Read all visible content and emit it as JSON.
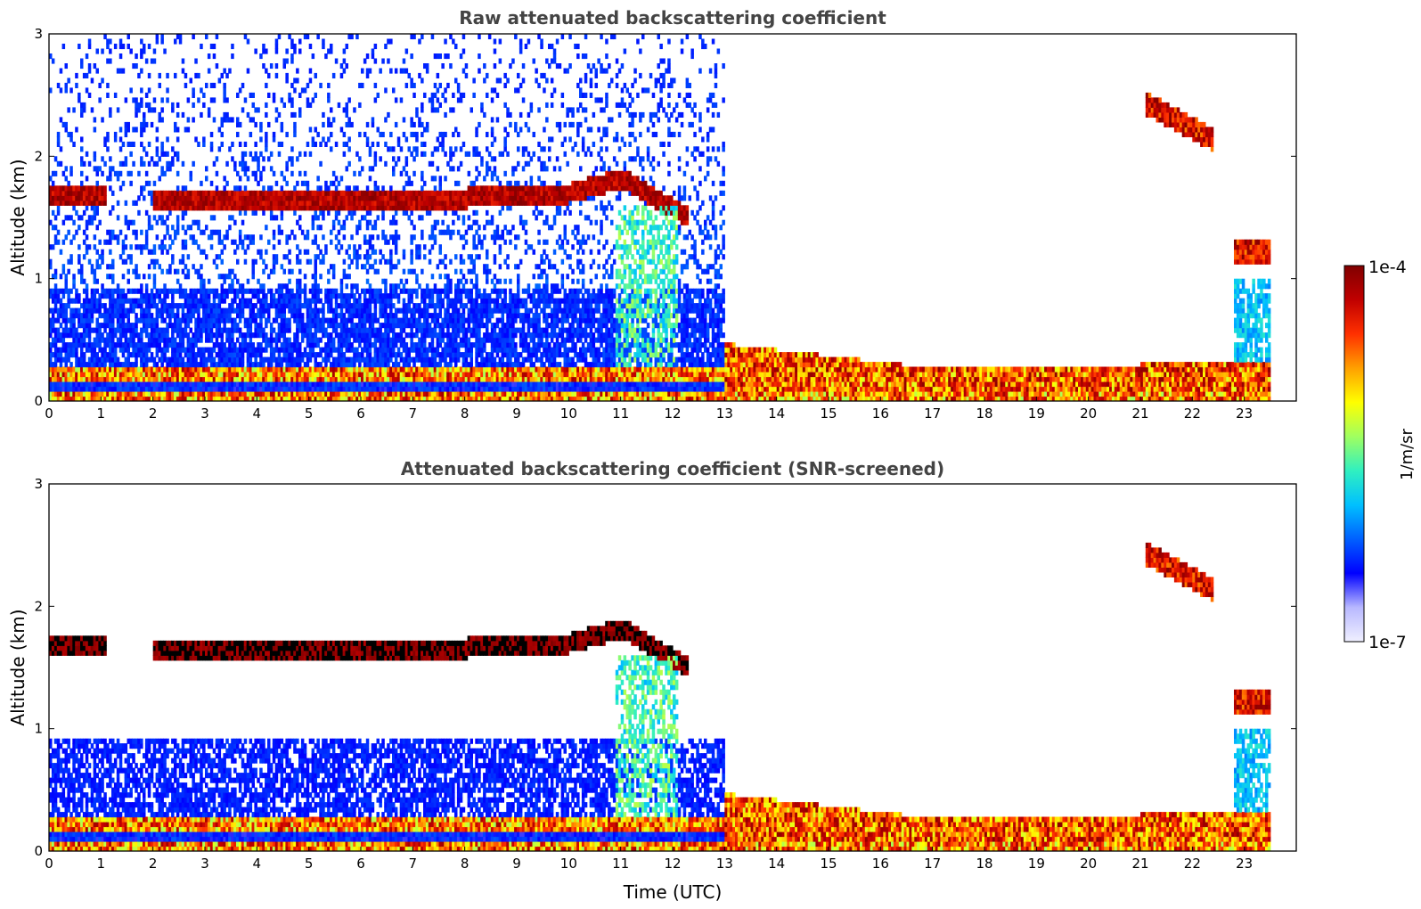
{
  "chart_data": [
    {
      "type": "heatmap",
      "title": "Raw attenuated backscattering coefficient",
      "xlabel": "",
      "ylabel": "Altitude (km)",
      "xlim": [
        0,
        24
      ],
      "ylim": [
        0,
        3
      ],
      "xticks": [
        "0",
        "1",
        "2",
        "3",
        "4",
        "5",
        "6",
        "7",
        "8",
        "9",
        "10",
        "11",
        "12",
        "13",
        "14",
        "15",
        "16",
        "17",
        "18",
        "19",
        "20",
        "21",
        "22",
        "23"
      ],
      "yticks": [
        "0",
        "1",
        "2",
        "3"
      ],
      "data_end_hour": 23.5,
      "features": [
        {
          "name": "boundary layer cloud",
          "t_start": 0,
          "t_end": 12.3,
          "base_km": 1.55,
          "top_km": 1.7,
          "level": "high"
        },
        {
          "name": "elevated cloud",
          "t_start": 21.1,
          "t_end": 22.4,
          "base_km": 2.2,
          "top_km": 2.5,
          "level": "high"
        },
        {
          "name": "low cloud",
          "t_start": 22.8,
          "t_end": 23.5,
          "base_km": 1.1,
          "top_km": 1.3,
          "level": "high"
        },
        {
          "name": "surface aerosol layer",
          "t_start": 0,
          "t_end": 23.5,
          "base_km": 0.05,
          "top_km": 0.35,
          "level": "medium"
        }
      ]
    },
    {
      "type": "heatmap",
      "title": "Attenuated backscattering coefficient (SNR-screened)",
      "xlabel": "Time (UTC)",
      "ylabel": "Altitude (km)",
      "xlim": [
        0,
        24
      ],
      "ylim": [
        0,
        3
      ],
      "xticks": [
        "0",
        "1",
        "2",
        "3",
        "4",
        "5",
        "6",
        "7",
        "8",
        "9",
        "10",
        "11",
        "12",
        "13",
        "14",
        "15",
        "16",
        "17",
        "18",
        "19",
        "20",
        "21",
        "22",
        "23"
      ],
      "yticks": [
        "0",
        "1",
        "2",
        "3"
      ],
      "data_end_hour": 23.5
    }
  ],
  "colorbar": {
    "min_label": "1e-7",
    "max_label": "1e-4",
    "unit_label": "1/m/sr",
    "colormap": [
      "#f0f0ff",
      "#b8b8ff",
      "#0000ff",
      "#0060ff",
      "#00c0ff",
      "#30f0c0",
      "#a0ff60",
      "#ffff00",
      "#ffa000",
      "#ff3000",
      "#c00000",
      "#800000"
    ]
  }
}
